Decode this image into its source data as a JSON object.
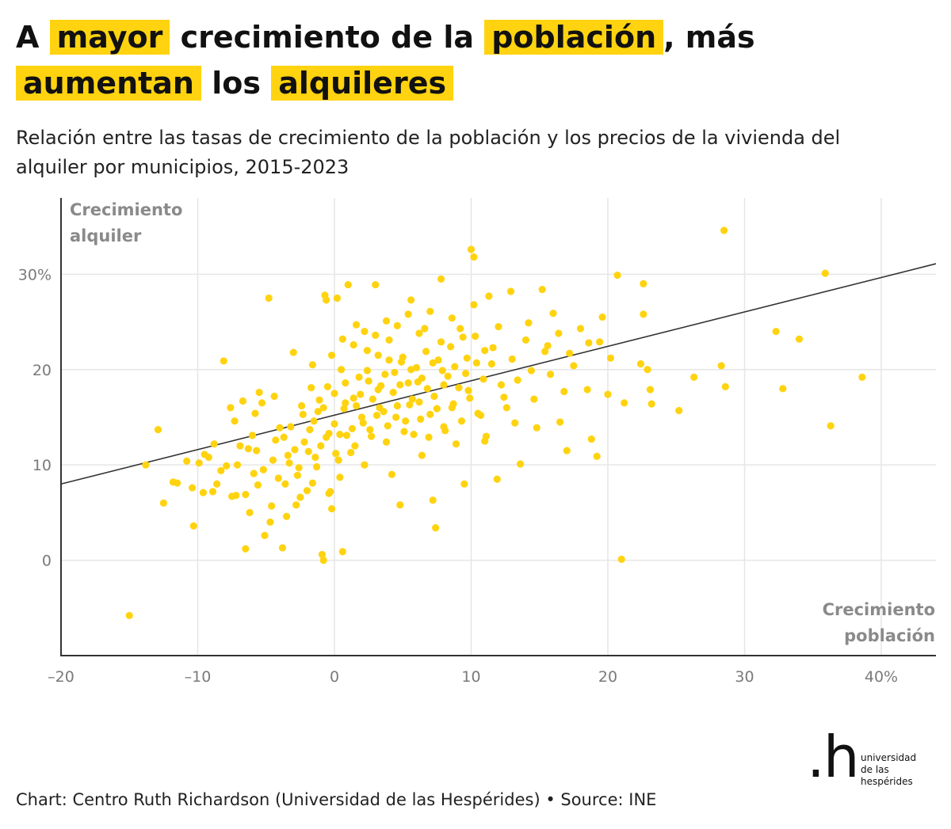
{
  "title": {
    "w1": "A",
    "w2": "mayor",
    "w3": "crecimiento de la",
    "w4": "población",
    "w5": ", más",
    "w6": "aumentan",
    "w7": "los",
    "w8": "alquileres"
  },
  "subtitle": "Relación entre las tasas de crecimiento de la población y los precios de la vivienda del alquiler por municipios, 2015-2023",
  "footer": "Chart: Centro Ruth Richardson (Universidad de las Hespérides) • Source: INE",
  "logo": {
    "mark": ".h",
    "line1": "universidad",
    "line2": "de las",
    "line3": "hespérides"
  },
  "colors": {
    "points": "#ffd30f",
    "trend": "#333333",
    "grid": "#e6e6e6",
    "highlight": "#ffd30f"
  },
  "chart_data": {
    "type": "scatter",
    "title": "A mayor crecimiento de la población, más aumentan los alquileres",
    "subtitle": "Relación entre las tasas de crecimiento de la población y los precios de la vivienda del alquiler por municipios, 2015-2023",
    "xlabel": "Crecimiento población",
    "ylabel": "Crecimiento alquiler",
    "xlabel_lines": [
      "Crecimiento",
      "población"
    ],
    "ylabel_lines": [
      "Crecimiento",
      "alquiler"
    ],
    "xlim": [
      -20,
      44
    ],
    "ylim": [
      -10,
      38
    ],
    "x_ticks": [
      -20,
      -10,
      0,
      10,
      20,
      30,
      40
    ],
    "x_tick_labels": [
      "–20",
      "–10",
      "0",
      "10",
      "20",
      "30",
      "40%"
    ],
    "y_ticks": [
      0,
      10,
      20,
      30
    ],
    "y_tick_labels": [
      "0",
      "10",
      "20",
      "30%"
    ],
    "grid": true,
    "trend_line": {
      "x": [
        -20,
        44
      ],
      "y": [
        8.0,
        31.1
      ]
    },
    "points": [
      [
        -15,
        -5.8
      ],
      [
        -13.8,
        10.0
      ],
      [
        -12.9,
        13.7
      ],
      [
        -12.5,
        6.0
      ],
      [
        -11.8,
        8.2
      ],
      [
        -11.5,
        8.1
      ],
      [
        -10.4,
        7.6
      ],
      [
        -10.3,
        3.6
      ],
      [
        -9.6,
        7.1
      ],
      [
        -9.2,
        10.8
      ],
      [
        -9.9,
        10.2
      ],
      [
        -8.9,
        7.2
      ],
      [
        -8.3,
        9.4
      ],
      [
        -8.1,
        20.9
      ],
      [
        -7.6,
        16.0
      ],
      [
        -7.5,
        6.7
      ],
      [
        -7.1,
        10.0
      ],
      [
        -6.9,
        12.0
      ],
      [
        -6.5,
        6.9
      ],
      [
        -6.5,
        1.2
      ],
      [
        -6.2,
        5.0
      ],
      [
        -6.0,
        13.1
      ],
      [
        -5.9,
        9.1
      ],
      [
        -5.7,
        11.5
      ],
      [
        -5.5,
        17.6
      ],
      [
        -5.3,
        16.5
      ],
      [
        -5.1,
        2.6
      ],
      [
        -4.8,
        27.5
      ],
      [
        -4.7,
        4.0
      ],
      [
        -4.5,
        10.5
      ],
      [
        -4.3,
        12.6
      ],
      [
        -4.0,
        13.9
      ],
      [
        -3.8,
        1.3
      ],
      [
        -3.6,
        8.0
      ],
      [
        -3.4,
        11.0
      ],
      [
        -3.2,
        14.0
      ],
      [
        -3.0,
        21.8
      ],
      [
        -2.8,
        5.8
      ],
      [
        -2.6,
        9.7
      ],
      [
        -2.4,
        16.2
      ],
      [
        -2.2,
        12.4
      ],
      [
        -2.0,
        7.3
      ],
      [
        -1.8,
        13.7
      ],
      [
        -1.6,
        20.5
      ],
      [
        -1.4,
        10.8
      ],
      [
        -1.2,
        15.6
      ],
      [
        -1.0,
        12.0
      ],
      [
        -0.9,
        0.6
      ],
      [
        -0.8,
        0.0
      ],
      [
        -0.7,
        27.8
      ],
      [
        -0.6,
        27.3
      ],
      [
        -0.5,
        18.2
      ],
      [
        -0.3,
        7.2
      ],
      [
        -0.2,
        5.4
      ],
      [
        0.0,
        14.3
      ],
      [
        0.2,
        27.5
      ],
      [
        0.4,
        13.2
      ],
      [
        0.5,
        20.0
      ],
      [
        0.6,
        0.9
      ],
      [
        0.8,
        16.5
      ],
      [
        1.0,
        28.9
      ],
      [
        1.2,
        11.3
      ],
      [
        1.4,
        17.0
      ],
      [
        1.6,
        24.7
      ],
      [
        1.8,
        19.2
      ],
      [
        2.0,
        15.0
      ],
      [
        2.2,
        10.0
      ],
      [
        2.4,
        22.0
      ],
      [
        2.6,
        13.7
      ],
      [
        2.8,
        16.9
      ],
      [
        3.0,
        28.9
      ],
      [
        3.2,
        21.5
      ],
      [
        3.4,
        18.3
      ],
      [
        3.6,
        15.6
      ],
      [
        3.8,
        12.4
      ],
      [
        4.0,
        23.1
      ],
      [
        4.2,
        9.0
      ],
      [
        4.4,
        19.7
      ],
      [
        4.6,
        16.2
      ],
      [
        4.8,
        5.8
      ],
      [
        5.0,
        21.3
      ],
      [
        5.2,
        14.6
      ],
      [
        5.4,
        18.6
      ],
      [
        5.6,
        27.3
      ],
      [
        5.8,
        13.2
      ],
      [
        6.0,
        20.2
      ],
      [
        6.2,
        16.6
      ],
      [
        6.4,
        11.0
      ],
      [
        6.6,
        24.3
      ],
      [
        6.8,
        18.0
      ],
      [
        7.0,
        15.3
      ],
      [
        7.2,
        6.3
      ],
      [
        7.4,
        3.4
      ],
      [
        7.6,
        21.0
      ],
      [
        7.8,
        29.5
      ],
      [
        8.0,
        14.0
      ],
      [
        8.3,
        19.3
      ],
      [
        8.6,
        16.0
      ],
      [
        8.9,
        12.2
      ],
      [
        9.2,
        24.3
      ],
      [
        9.5,
        8.0
      ],
      [
        9.8,
        17.8
      ],
      [
        10.0,
        32.6
      ],
      [
        10.2,
        31.8
      ],
      [
        10.4,
        20.7
      ],
      [
        10.7,
        15.2
      ],
      [
        11.0,
        12.5
      ],
      [
        11.3,
        27.7
      ],
      [
        11.6,
        22.3
      ],
      [
        11.9,
        8.5
      ],
      [
        12.2,
        18.4
      ],
      [
        12.6,
        16.0
      ],
      [
        12.9,
        28.2
      ],
      [
        13.2,
        14.4
      ],
      [
        13.6,
        10.1
      ],
      [
        14.0,
        23.1
      ],
      [
        14.4,
        19.9
      ],
      [
        14.8,
        13.9
      ],
      [
        15.2,
        28.4
      ],
      [
        15.6,
        22.5
      ],
      [
        16.0,
        25.9
      ],
      [
        16.5,
        14.5
      ],
      [
        17.0,
        11.5
      ],
      [
        17.5,
        20.4
      ],
      [
        18.0,
        24.3
      ],
      [
        18.5,
        17.9
      ],
      [
        18.8,
        12.7
      ],
      [
        19.2,
        10.9
      ],
      [
        19.6,
        25.5
      ],
      [
        20.0,
        17.4
      ],
      [
        20.7,
        29.9
      ],
      [
        21.0,
        0.1
      ],
      [
        21.2,
        16.5
      ],
      [
        22.4,
        20.6
      ],
      [
        22.6,
        29.0
      ],
      [
        22.6,
        25.8
      ],
      [
        22.9,
        20.0
      ],
      [
        23.1,
        17.9
      ],
      [
        23.2,
        16.4
      ],
      [
        25.2,
        15.7
      ],
      [
        26.3,
        19.2
      ],
      [
        28.3,
        20.4
      ],
      [
        28.5,
        34.6
      ],
      [
        28.6,
        18.2
      ],
      [
        32.3,
        24.0
      ],
      [
        32.8,
        18.0
      ],
      [
        34.0,
        23.2
      ],
      [
        35.9,
        30.1
      ],
      [
        36.3,
        14.1
      ],
      [
        38.6,
        19.2
      ],
      [
        -6.7,
        16.7
      ],
      [
        -7.3,
        14.6
      ],
      [
        -5.8,
        15.4
      ],
      [
        -4.4,
        17.2
      ],
      [
        -3.7,
        12.9
      ],
      [
        -2.9,
        11.6
      ],
      [
        -2.3,
        15.3
      ],
      [
        -1.7,
        18.1
      ],
      [
        -1.1,
        16.8
      ],
      [
        -0.4,
        13.3
      ],
      [
        0.1,
        11.2
      ],
      [
        0.7,
        15.9
      ],
      [
        1.3,
        13.8
      ],
      [
        1.9,
        17.4
      ],
      [
        2.5,
        18.8
      ],
      [
        3.1,
        15.2
      ],
      [
        3.7,
        19.5
      ],
      [
        4.3,
        17.6
      ],
      [
        4.9,
        20.8
      ],
      [
        5.5,
        16.3
      ],
      [
        6.1,
        18.7
      ],
      [
        6.7,
        21.9
      ],
      [
        7.3,
        17.2
      ],
      [
        7.9,
        19.9
      ],
      [
        8.5,
        22.4
      ],
      [
        9.1,
        18.1
      ],
      [
        9.7,
        21.2
      ],
      [
        10.3,
        23.5
      ],
      [
        10.9,
        19.0
      ],
      [
        11.5,
        20.6
      ],
      [
        -8.8,
        12.2
      ],
      [
        -9.5,
        11.1
      ],
      [
        -7.9,
        9.9
      ],
      [
        -6.3,
        11.7
      ],
      [
        -5.2,
        9.5
      ],
      [
        -4.1,
        8.6
      ],
      [
        -3.3,
        10.2
      ],
      [
        -2.7,
        8.9
      ],
      [
        -1.9,
        11.4
      ],
      [
        -1.3,
        9.8
      ],
      [
        -0.6,
        12.9
      ],
      [
        0.3,
        10.5
      ],
      [
        0.9,
        13.1
      ],
      [
        1.5,
        12.0
      ],
      [
        2.1,
        14.4
      ],
      [
        2.7,
        13.0
      ],
      [
        3.3,
        16.0
      ],
      [
        3.9,
        14.1
      ],
      [
        4.5,
        15.0
      ],
      [
        5.1,
        13.5
      ],
      [
        5.7,
        16.9
      ],
      [
        6.3,
        14.8
      ],
      [
        6.9,
        12.9
      ],
      [
        7.5,
        15.9
      ],
      [
        8.1,
        13.6
      ],
      [
        8.7,
        16.4
      ],
      [
        9.3,
        14.6
      ],
      [
        9.9,
        17.0
      ],
      [
        10.5,
        15.4
      ],
      [
        11.1,
        13.0
      ],
      [
        -0.2,
        21.5
      ],
      [
        0.6,
        23.2
      ],
      [
        1.4,
        22.6
      ],
      [
        2.2,
        24.0
      ],
      [
        3.0,
        23.6
      ],
      [
        3.8,
        25.1
      ],
      [
        4.6,
        24.6
      ],
      [
        5.4,
        25.8
      ],
      [
        6.2,
        23.8
      ],
      [
        7.0,
        26.1
      ],
      [
        7.8,
        22.9
      ],
      [
        8.6,
        25.4
      ],
      [
        9.4,
        23.4
      ],
      [
        10.2,
        26.8
      ],
      [
        11.0,
        22.0
      ],
      [
        12.0,
        24.5
      ],
      [
        13.0,
        21.1
      ],
      [
        14.2,
        24.9
      ],
      [
        15.4,
        21.9
      ],
      [
        16.4,
        23.8
      ],
      [
        17.2,
        21.7
      ],
      [
        18.6,
        22.8
      ],
      [
        19.4,
        22.9
      ],
      [
        20.2,
        21.2
      ],
      [
        -1.5,
        14.6
      ],
      [
        -0.8,
        16.0
      ],
      [
        0.0,
        17.5
      ],
      [
        0.8,
        18.6
      ],
      [
        1.6,
        16.2
      ],
      [
        2.4,
        19.9
      ],
      [
        3.2,
        17.9
      ],
      [
        4.0,
        21.0
      ],
      [
        4.8,
        18.4
      ],
      [
        5.6,
        20.0
      ],
      [
        6.4,
        19.1
      ],
      [
        7.2,
        20.7
      ],
      [
        8.0,
        18.4
      ],
      [
        8.8,
        20.3
      ],
      [
        9.6,
        19.6
      ],
      [
        12.4,
        17.1
      ],
      [
        13.4,
        18.9
      ],
      [
        14.6,
        16.9
      ],
      [
        15.8,
        19.5
      ],
      [
        16.8,
        17.7
      ],
      [
        -10.8,
        10.4
      ],
      [
        -8.6,
        8.0
      ],
      [
        -7.2,
        6.8
      ],
      [
        -5.6,
        7.9
      ],
      [
        -4.6,
        5.7
      ],
      [
        -3.5,
        4.6
      ],
      [
        -2.5,
        6.6
      ],
      [
        -1.6,
        8.1
      ],
      [
        -0.4,
        7.0
      ],
      [
        0.4,
        8.7
      ]
    ]
  }
}
